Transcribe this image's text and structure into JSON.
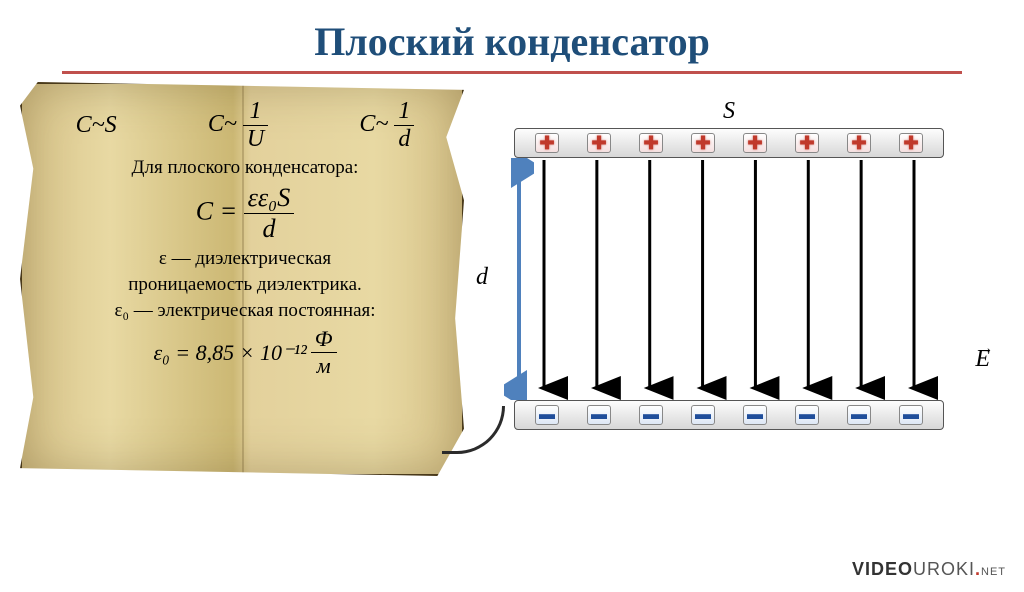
{
  "title": "Плоский конденсатор",
  "colors": {
    "title": "#1f4e79",
    "rule": "#c0504d",
    "parchment_light": "#e8d9a3",
    "parchment_dark": "#ccb874",
    "plus": "#c0392b",
    "minus": "#1f4e9b",
    "d_arrow": "#4f81bd",
    "field_line": "#000000",
    "plate_border": "#555555"
  },
  "scroll": {
    "rel_CS": "C~S",
    "rel_CU_left": "C~",
    "rel_CU_num": "1",
    "rel_CU_den": "U",
    "rel_Cd_left": "C~",
    "rel_Cd_num": "1",
    "rel_Cd_den": "d",
    "for_line": "Для плоского конденсатора:",
    "main_left": "C =",
    "main_num": "εε₀S",
    "main_den": "d",
    "eps_label": "ε — диэлектрическая",
    "eps_label2": "проницаемость диэлектрика.",
    "eps0_label": "ε₀ — электрическая постоянная:",
    "const_left": "ε₀ = 8,85 × 10⁻¹²",
    "const_num": "Ф",
    "const_den": "м"
  },
  "diagram": {
    "label_S": "S",
    "label_d": "d",
    "label_E": "E",
    "vec_arrow": "→",
    "plus_sign": "✚",
    "minus_sign": "▬",
    "field_line_count": 8,
    "charge_count": 8,
    "d_arrow_color": "#4f81bd",
    "field_color": "#000000"
  },
  "watermark": {
    "brand_main": "VIDEO",
    "brand_sub": "UROKI",
    "brand_dot": ".",
    "brand_tld": "NET"
  }
}
